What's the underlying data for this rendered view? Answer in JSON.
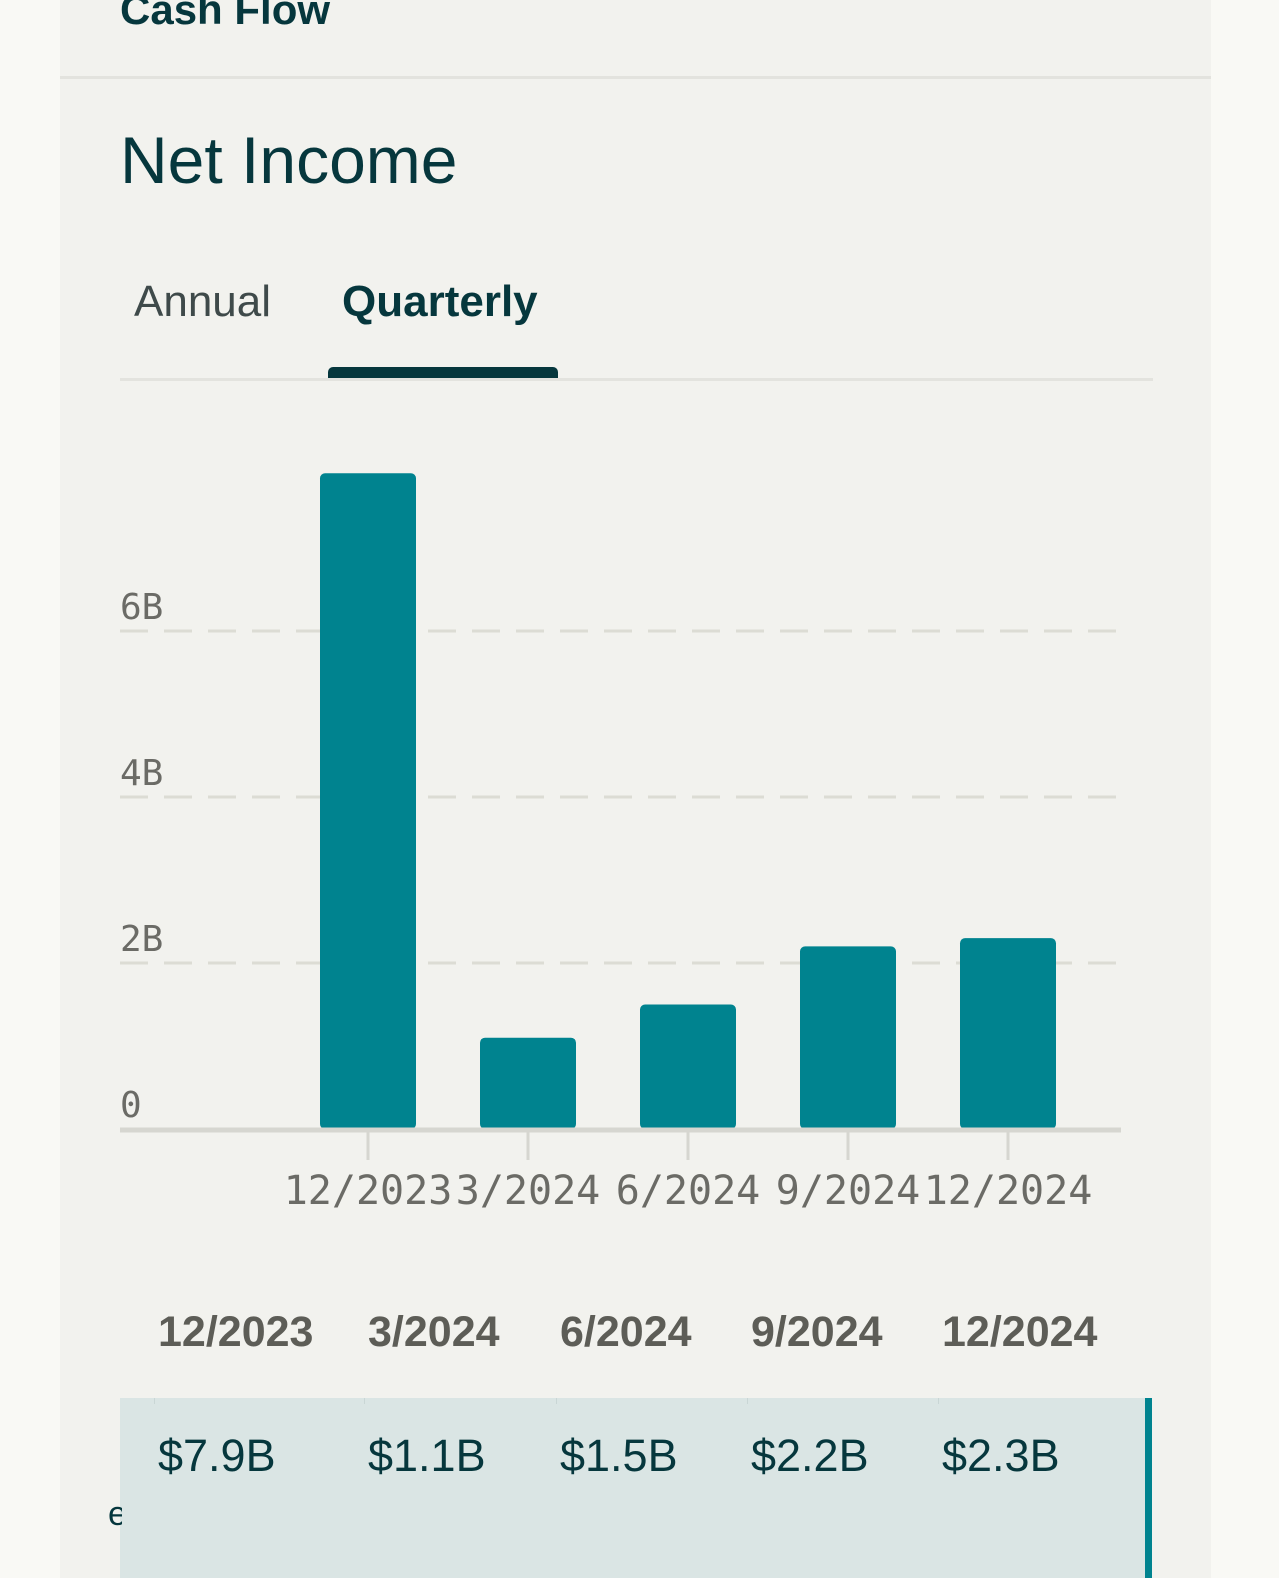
{
  "section": {
    "title": "Cash Flow"
  },
  "chart_title": "Net Income",
  "tabs": [
    {
      "label": "Annual",
      "active": false
    },
    {
      "label": "Quarterly",
      "active": true
    }
  ],
  "colors": {
    "bar": "#00838f",
    "text": "#06373d",
    "grid": "#dcdcd4"
  },
  "chart_data": {
    "type": "bar",
    "title": "Net Income",
    "categories": [
      "12/2023",
      "3/2024",
      "6/2024",
      "9/2024",
      "12/2024"
    ],
    "values": [
      7.9,
      1.1,
      1.5,
      2.2,
      2.3
    ],
    "units": "B",
    "yticks": [
      "0",
      "2B",
      "4B",
      "6B"
    ],
    "ytick_values": [
      0,
      2,
      4,
      6
    ],
    "ylim": [
      0,
      8
    ],
    "grid": true,
    "xlabel": "",
    "ylabel": ""
  },
  "table": {
    "headers": [
      "12/2023",
      "3/2024",
      "6/2024",
      "9/2024",
      "12/2024"
    ],
    "values": [
      "$7.9B",
      "$1.1B",
      "$1.5B",
      "$2.2B",
      "$2.3B"
    ],
    "cut_label": "e"
  }
}
